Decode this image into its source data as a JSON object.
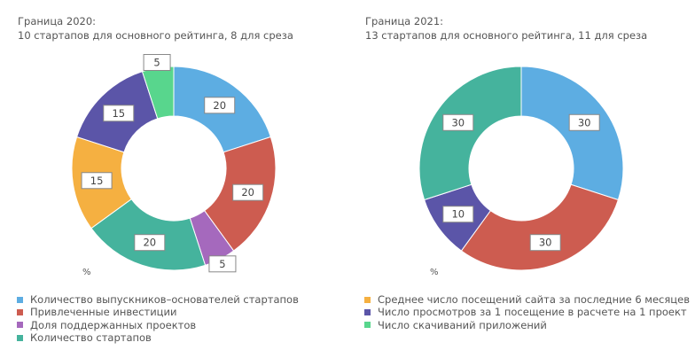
{
  "chart_data": [
    {
      "type": "pie",
      "donut": true,
      "title": "Граница 2020:",
      "subtitle": "10 стартапов для основного рейтинга, 8 для среза",
      "unit_label": "%",
      "slices": [
        {
          "label": "Количество выпускников–основателей стартапов",
          "value": 20,
          "color": "#5dade2"
        },
        {
          "label": "Привлеченные инвестиции",
          "value": 20,
          "color": "#cd5c50"
        },
        {
          "label": "Доля поддержанных проектов",
          "value": 5,
          "color": "#a569bd"
        },
        {
          "label": "Количество стартапов",
          "value": 20,
          "color": "#45b39d"
        },
        {
          "label": "Среднее число посещений сайта за последние 6 месяцев",
          "value": 15,
          "color": "#f5b041"
        },
        {
          "label": "Число просмотров за 1 посещение в расчете на 1 проект",
          "value": 15,
          "color": "#5b55a8"
        },
        {
          "label": "Число скачиваний приложений",
          "value": 5,
          "color": "#58d68d"
        }
      ]
    },
    {
      "type": "pie",
      "donut": true,
      "title": "Граница 2021:",
      "subtitle": "13 стартапов для основного рейтинга, 11 для среза",
      "unit_label": "%",
      "slices": [
        {
          "label": "Количество выпускников–основателей стартапов",
          "value": 30,
          "color": "#5dade2"
        },
        {
          "label": "Привлеченные инвестиции",
          "value": 30,
          "color": "#cd5c50"
        },
        {
          "label": "Число просмотров за 1 посещение в расчете на 1 проект",
          "value": 10,
          "color": "#5b55a8"
        },
        {
          "label": "Количество стартапов",
          "value": 30,
          "color": "#45b39d"
        }
      ]
    }
  ],
  "legend": {
    "left": [
      {
        "label": "Количество выпускников–основателей стартапов",
        "color": "#5dade2"
      },
      {
        "label": "Привлеченные инвестиции",
        "color": "#cd5c50"
      },
      {
        "label": "Доля поддержанных проектов",
        "color": "#a569bd"
      },
      {
        "label": "Количество стартапов",
        "color": "#45b39d"
      }
    ],
    "right": [
      {
        "label": "Среднее число посещений сайта за последние 6 месяцев",
        "color": "#f5b041"
      },
      {
        "label": "Число просмотров за 1 посещение в расчете на 1 проект",
        "color": "#5b55a8"
      },
      {
        "label": "Число скачиваний приложений",
        "color": "#58d68d"
      }
    ]
  }
}
